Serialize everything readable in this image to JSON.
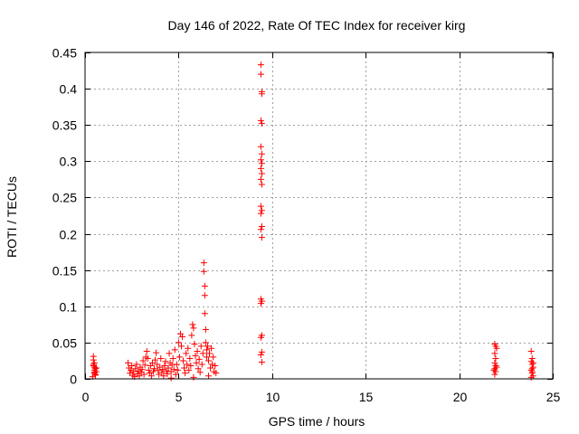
{
  "chart_data": {
    "type": "scatter",
    "title": "Day 146 of 2022, Rate Of TEC Index for receiver kirg",
    "xlabel": "GPS time / hours",
    "ylabel": "ROTI / TECUs",
    "xlim": [
      0,
      25
    ],
    "ylim": [
      0,
      0.45
    ],
    "xticks": [
      0,
      5,
      10,
      15,
      20,
      25
    ],
    "xtick_labels": [
      "0",
      "5",
      "10",
      "15",
      "20",
      "25"
    ],
    "yticks": [
      0,
      0.05,
      0.1,
      0.15,
      0.2,
      0.25,
      0.3,
      0.35,
      0.4,
      0.45
    ],
    "ytick_labels": [
      "0",
      "0.05",
      "0.1",
      "0.15",
      "0.2",
      "0.25",
      "0.3",
      "0.35",
      "0.4",
      "0.45"
    ],
    "grid": true,
    "marker": "+",
    "marker_color": "#ff0000",
    "series": [
      {
        "name": "ROTI",
        "points": [
          [
            0.45,
            0.031
          ],
          [
            0.45,
            0.026
          ],
          [
            0.45,
            0.02
          ],
          [
            0.5,
            0.016
          ],
          [
            0.5,
            0.012
          ],
          [
            0.5,
            0.008
          ],
          [
            0.55,
            0.005
          ],
          [
            0.55,
            0.014
          ],
          [
            0.4,
            0.003
          ],
          [
            0.6,
            0.01
          ],
          [
            0.5,
            0.022
          ],
          [
            0.45,
            0.018
          ],
          [
            0.55,
            0.006
          ],
          [
            0.5,
            0.009
          ],
          [
            0.6,
            0.015
          ],
          [
            2.3,
            0.022
          ],
          [
            2.35,
            0.015
          ],
          [
            2.4,
            0.008
          ],
          [
            2.45,
            0.012
          ],
          [
            2.5,
            0.018
          ],
          [
            2.55,
            0.005
          ],
          [
            2.6,
            0.01
          ],
          [
            2.65,
            0.003
          ],
          [
            2.7,
            0.014
          ],
          [
            2.75,
            0.02
          ],
          [
            2.8,
            0.007
          ],
          [
            2.85,
            0.011
          ],
          [
            2.9,
            0.004
          ],
          [
            2.95,
            0.016
          ],
          [
            3.0,
            0.009
          ],
          [
            3.05,
            0.013
          ],
          [
            3.1,
            0.025
          ],
          [
            3.15,
            0.006
          ],
          [
            3.2,
            0.019
          ],
          [
            3.25,
            0.03
          ],
          [
            3.3,
            0.038
          ],
          [
            3.35,
            0.028
          ],
          [
            3.4,
            0.012
          ],
          [
            3.45,
            0.008
          ],
          [
            3.5,
            0.018
          ],
          [
            3.55,
            0.004
          ],
          [
            3.6,
            0.022
          ],
          [
            3.65,
            0.01
          ],
          [
            3.7,
            0.014
          ],
          [
            3.75,
            0.026
          ],
          [
            3.8,
            0.036
          ],
          [
            3.85,
            0.02
          ],
          [
            3.9,
            0.012
          ],
          [
            3.95,
            0.006
          ],
          [
            4.0,
            0.016
          ],
          [
            4.05,
            0.028
          ],
          [
            4.1,
            0.009
          ],
          [
            4.15,
            0.013
          ],
          [
            4.2,
            0.004
          ],
          [
            4.25,
            0.018
          ],
          [
            4.3,
            0.024
          ],
          [
            4.35,
            0.011
          ],
          [
            4.4,
            0.007
          ],
          [
            4.45,
            0.015
          ],
          [
            4.5,
            0.035
          ],
          [
            4.55,
            0.022
          ],
          [
            4.6,
            0.01
          ],
          [
            4.65,
            0.019
          ],
          [
            4.7,
            0.028
          ],
          [
            4.75,
            0.013
          ],
          [
            4.8,
            0.04
          ],
          [
            4.85,
            0.006
          ],
          [
            4.9,
            0.02
          ],
          [
            4.95,
            0.012
          ],
          [
            5.0,
            0.05
          ],
          [
            5.05,
            0.03
          ],
          [
            5.1,
            0.062
          ],
          [
            5.15,
            0.045
          ],
          [
            5.2,
            0.058
          ],
          [
            5.25,
            0.025
          ],
          [
            5.3,
            0.015
          ],
          [
            5.35,
            0.008
          ],
          [
            5.4,
            0.035
          ],
          [
            5.45,
            0.02
          ],
          [
            5.5,
            0.042
          ],
          [
            5.55,
            0.012
          ],
          [
            5.6,
            0.028
          ],
          [
            5.65,
            0.018
          ],
          [
            5.7,
            0.06
          ],
          [
            5.75,
            0.075
          ],
          [
            5.8,
            0.07
          ],
          [
            5.85,
            0.048
          ],
          [
            5.9,
            0.032
          ],
          [
            5.95,
            0.022
          ],
          [
            6.0,
            0.038
          ],
          [
            6.05,
            0.014
          ],
          [
            6.1,
            0.027
          ],
          [
            6.15,
            0.009
          ],
          [
            6.2,
            0.045
          ],
          [
            6.25,
            0.02
          ],
          [
            6.3,
            0.035
          ],
          [
            6.35,
            0.16
          ],
          [
            6.35,
            0.148
          ],
          [
            6.4,
            0.128
          ],
          [
            6.4,
            0.115
          ],
          [
            6.4,
            0.09
          ],
          [
            6.45,
            0.068
          ],
          [
            6.45,
            0.05
          ],
          [
            6.5,
            0.04
          ],
          [
            6.5,
            0.03
          ],
          [
            6.55,
            0.045
          ],
          [
            6.6,
            0.025
          ],
          [
            6.65,
            0.035
          ],
          [
            6.7,
            0.015
          ],
          [
            6.75,
            0.042
          ],
          [
            6.8,
            0.02
          ],
          [
            6.85,
            0.03
          ],
          [
            6.9,
            0.01
          ],
          [
            6.95,
            0.018
          ],
          [
            7.0,
            0.008
          ],
          [
            5.8,
            0.002
          ],
          [
            6.6,
            0.004
          ],
          [
            4.6,
            0.001
          ],
          [
            9.4,
            0.433
          ],
          [
            9.4,
            0.42
          ],
          [
            9.45,
            0.396
          ],
          [
            9.45,
            0.393
          ],
          [
            9.4,
            0.356
          ],
          [
            9.45,
            0.352
          ],
          [
            9.4,
            0.32
          ],
          [
            9.45,
            0.31
          ],
          [
            9.4,
            0.302
          ],
          [
            9.45,
            0.297
          ],
          [
            9.4,
            0.29
          ],
          [
            9.45,
            0.283
          ],
          [
            9.4,
            0.275
          ],
          [
            9.45,
            0.268
          ],
          [
            9.4,
            0.238
          ],
          [
            9.45,
            0.232
          ],
          [
            9.4,
            0.228
          ],
          [
            9.45,
            0.21
          ],
          [
            9.4,
            0.206
          ],
          [
            9.45,
            0.195
          ],
          [
            9.4,
            0.11
          ],
          [
            9.45,
            0.107
          ],
          [
            9.4,
            0.104
          ],
          [
            9.45,
            0.06
          ],
          [
            9.4,
            0.057
          ],
          [
            9.45,
            0.037
          ],
          [
            9.4,
            0.033
          ],
          [
            9.45,
            0.023
          ],
          [
            21.9,
            0.048
          ],
          [
            21.95,
            0.045
          ],
          [
            21.9,
            0.035
          ],
          [
            21.95,
            0.028
          ],
          [
            21.9,
            0.022
          ],
          [
            21.95,
            0.018
          ],
          [
            21.9,
            0.014
          ],
          [
            21.95,
            0.01
          ],
          [
            21.9,
            0.006
          ],
          [
            22.0,
            0.016
          ],
          [
            21.85,
            0.012
          ],
          [
            22.0,
            0.042
          ],
          [
            23.85,
            0.038
          ],
          [
            23.9,
            0.028
          ],
          [
            23.85,
            0.024
          ],
          [
            23.9,
            0.02
          ],
          [
            23.95,
            0.016
          ],
          [
            23.85,
            0.012
          ],
          [
            23.9,
            0.008
          ],
          [
            23.95,
            0.004
          ],
          [
            23.85,
            0.002
          ],
          [
            23.9,
            0.014
          ],
          [
            23.95,
            0.022
          ],
          [
            23.9,
            0.01
          ]
        ]
      }
    ]
  }
}
